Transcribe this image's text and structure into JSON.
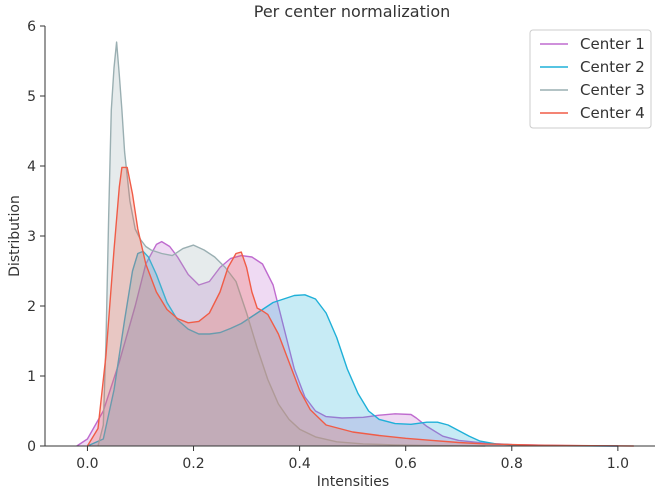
{
  "chart_data": {
    "type": "area",
    "title": "Per center normalization",
    "xlabel": "Intensities",
    "ylabel": "Distribution",
    "xlim": [
      -0.08,
      1.07
    ],
    "ylim": [
      0,
      6
    ],
    "xticks": [
      0.0,
      0.2,
      0.4,
      0.6,
      0.8,
      1.0
    ],
    "xtick_labels": [
      "0.0",
      "0.2",
      "0.4",
      "0.6",
      "0.8",
      "1.0"
    ],
    "yticks": [
      0,
      1,
      2,
      3,
      4,
      5,
      6
    ],
    "ytick_labels": [
      "0",
      "1",
      "2",
      "3",
      "4",
      "5",
      "6"
    ],
    "grid": false,
    "legend_position": "top-right",
    "series": [
      {
        "name": "Center 1",
        "color": "#bf6bcf",
        "points": [
          [
            -0.02,
            0
          ],
          [
            0.0,
            0.1
          ],
          [
            0.03,
            0.5
          ],
          [
            0.06,
            1.2
          ],
          [
            0.09,
            2.0
          ],
          [
            0.11,
            2.6
          ],
          [
            0.13,
            2.88
          ],
          [
            0.14,
            2.92
          ],
          [
            0.155,
            2.85
          ],
          [
            0.17,
            2.7
          ],
          [
            0.19,
            2.45
          ],
          [
            0.21,
            2.3
          ],
          [
            0.23,
            2.35
          ],
          [
            0.25,
            2.55
          ],
          [
            0.27,
            2.68
          ],
          [
            0.29,
            2.72
          ],
          [
            0.31,
            2.7
          ],
          [
            0.33,
            2.6
          ],
          [
            0.35,
            2.3
          ],
          [
            0.37,
            1.7
          ],
          [
            0.39,
            1.1
          ],
          [
            0.41,
            0.7
          ],
          [
            0.43,
            0.5
          ],
          [
            0.45,
            0.42
          ],
          [
            0.48,
            0.4
          ],
          [
            0.52,
            0.41
          ],
          [
            0.55,
            0.44
          ],
          [
            0.58,
            0.46
          ],
          [
            0.61,
            0.45
          ],
          [
            0.62,
            0.4
          ],
          [
            0.64,
            0.28
          ],
          [
            0.67,
            0.14
          ],
          [
            0.7,
            0.08
          ],
          [
            0.75,
            0.04
          ],
          [
            0.8,
            0.02
          ],
          [
            0.9,
            0.005
          ],
          [
            1.0,
            0
          ]
        ]
      },
      {
        "name": "Center 2",
        "color": "#1fb0d8",
        "points": [
          [
            0.0,
            0
          ],
          [
            0.03,
            0.1
          ],
          [
            0.05,
            0.8
          ],
          [
            0.07,
            1.8
          ],
          [
            0.085,
            2.5
          ],
          [
            0.095,
            2.75
          ],
          [
            0.105,
            2.78
          ],
          [
            0.115,
            2.7
          ],
          [
            0.13,
            2.45
          ],
          [
            0.15,
            2.05
          ],
          [
            0.17,
            1.8
          ],
          [
            0.19,
            1.67
          ],
          [
            0.21,
            1.6
          ],
          [
            0.23,
            1.6
          ],
          [
            0.25,
            1.62
          ],
          [
            0.27,
            1.68
          ],
          [
            0.29,
            1.75
          ],
          [
            0.31,
            1.85
          ],
          [
            0.33,
            1.95
          ],
          [
            0.35,
            2.05
          ],
          [
            0.37,
            2.1
          ],
          [
            0.39,
            2.15
          ],
          [
            0.41,
            2.16
          ],
          [
            0.43,
            2.1
          ],
          [
            0.45,
            1.9
          ],
          [
            0.47,
            1.55
          ],
          [
            0.49,
            1.1
          ],
          [
            0.51,
            0.75
          ],
          [
            0.53,
            0.5
          ],
          [
            0.55,
            0.38
          ],
          [
            0.58,
            0.32
          ],
          [
            0.61,
            0.31
          ],
          [
            0.64,
            0.34
          ],
          [
            0.66,
            0.34
          ],
          [
            0.68,
            0.3
          ],
          [
            0.7,
            0.22
          ],
          [
            0.72,
            0.14
          ],
          [
            0.74,
            0.07
          ],
          [
            0.77,
            0.03
          ],
          [
            0.82,
            0.01
          ],
          [
            0.9,
            0.003
          ],
          [
            1.0,
            0
          ]
        ]
      },
      {
        "name": "Center 3",
        "color": "#9aafb2",
        "points": [
          [
            0.02,
            0
          ],
          [
            0.03,
            0.3
          ],
          [
            0.035,
            1.5
          ],
          [
            0.04,
            3.3
          ],
          [
            0.045,
            4.8
          ],
          [
            0.05,
            5.4
          ],
          [
            0.055,
            5.77
          ],
          [
            0.06,
            5.3
          ],
          [
            0.065,
            4.8
          ],
          [
            0.07,
            4.2
          ],
          [
            0.08,
            3.5
          ],
          [
            0.09,
            3.1
          ],
          [
            0.1,
            2.95
          ],
          [
            0.11,
            2.85
          ],
          [
            0.12,
            2.8
          ],
          [
            0.14,
            2.75
          ],
          [
            0.16,
            2.72
          ],
          [
            0.18,
            2.82
          ],
          [
            0.2,
            2.87
          ],
          [
            0.22,
            2.8
          ],
          [
            0.24,
            2.7
          ],
          [
            0.26,
            2.55
          ],
          [
            0.28,
            2.35
          ],
          [
            0.3,
            1.9
          ],
          [
            0.32,
            1.4
          ],
          [
            0.34,
            0.95
          ],
          [
            0.36,
            0.6
          ],
          [
            0.38,
            0.38
          ],
          [
            0.4,
            0.24
          ],
          [
            0.43,
            0.13
          ],
          [
            0.47,
            0.06
          ],
          [
            0.52,
            0.03
          ],
          [
            0.58,
            0.015
          ],
          [
            0.65,
            0.005
          ],
          [
            0.75,
            0
          ]
        ]
      },
      {
        "name": "Center 4",
        "color": "#f05c47",
        "points": [
          [
            0.0,
            0
          ],
          [
            0.02,
            0.25
          ],
          [
            0.035,
            1.3
          ],
          [
            0.05,
            2.8
          ],
          [
            0.06,
            3.7
          ],
          [
            0.065,
            3.98
          ],
          [
            0.075,
            3.98
          ],
          [
            0.085,
            3.6
          ],
          [
            0.095,
            3.1
          ],
          [
            0.11,
            2.6
          ],
          [
            0.13,
            2.2
          ],
          [
            0.15,
            1.95
          ],
          [
            0.17,
            1.82
          ],
          [
            0.19,
            1.76
          ],
          [
            0.21,
            1.78
          ],
          [
            0.23,
            1.9
          ],
          [
            0.25,
            2.2
          ],
          [
            0.265,
            2.55
          ],
          [
            0.28,
            2.75
          ],
          [
            0.29,
            2.77
          ],
          [
            0.3,
            2.55
          ],
          [
            0.31,
            2.2
          ],
          [
            0.32,
            1.97
          ],
          [
            0.33,
            1.93
          ],
          [
            0.34,
            1.88
          ],
          [
            0.36,
            1.6
          ],
          [
            0.38,
            1.2
          ],
          [
            0.4,
            0.8
          ],
          [
            0.42,
            0.52
          ],
          [
            0.45,
            0.3
          ],
          [
            0.5,
            0.2
          ],
          [
            0.55,
            0.15
          ],
          [
            0.6,
            0.11
          ],
          [
            0.65,
            0.08
          ],
          [
            0.7,
            0.05
          ],
          [
            0.75,
            0.03
          ],
          [
            0.85,
            0.012
          ],
          [
            0.95,
            0.004
          ],
          [
            1.03,
            0
          ]
        ]
      }
    ]
  }
}
